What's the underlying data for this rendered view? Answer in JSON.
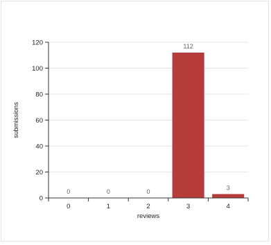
{
  "colors": {
    "bar": "#b53c3a",
    "grid": "#e6e6e6",
    "axis": "#333333"
  },
  "chart_data": {
    "type": "bar",
    "categories": [
      "0",
      "1",
      "2",
      "3",
      "4"
    ],
    "values": [
      0,
      0,
      0,
      112,
      3
    ],
    "data_labels": [
      "0",
      "0",
      "0",
      "112",
      "3"
    ],
    "xlabel": "reviews",
    "ylabel": "submissions",
    "ylim": [
      0,
      120
    ],
    "yticks": [
      0,
      20,
      40,
      60,
      80,
      100,
      120
    ],
    "ytick_labels": [
      "0",
      "20",
      "40",
      "60",
      "80",
      "100",
      "120"
    ],
    "grid": true
  }
}
